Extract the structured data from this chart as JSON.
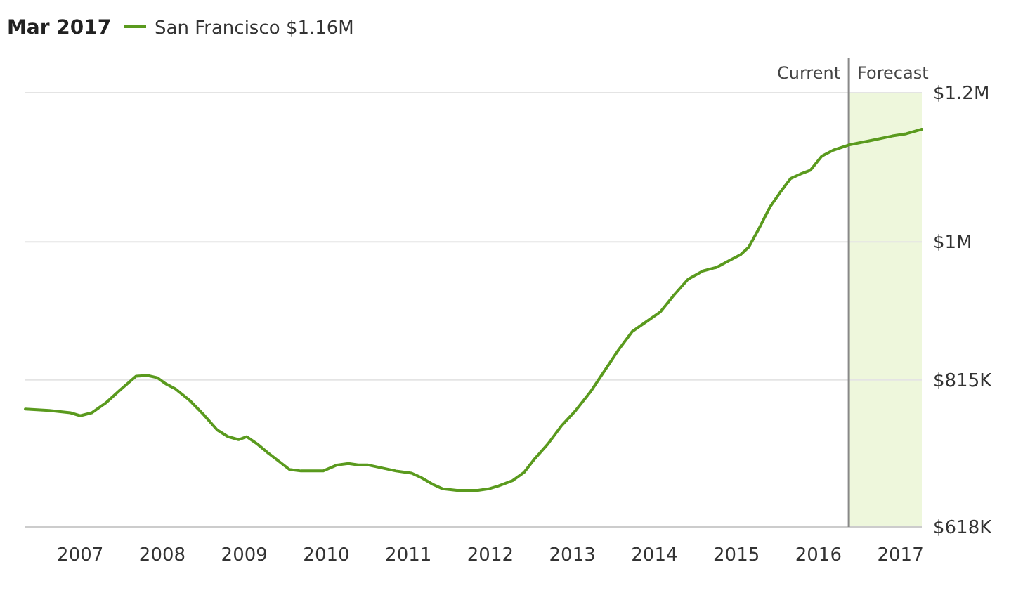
{
  "chart_data": {
    "type": "line",
    "title": "Mar 2017",
    "legend": "top left",
    "grid": "y",
    "marker": "none",
    "line_style": "solid",
    "x": [
      2006.33,
      2006.62,
      2006.88,
      2007,
      2007.14,
      2007.31,
      2007.48,
      2007.68,
      2007.82,
      2007.94,
      2008.04,
      2008.16,
      2008.33,
      2008.5,
      2008.67,
      2008.8,
      2008.93,
      2009.03,
      2009.16,
      2009.28,
      2009.41,
      2009.55,
      2009.69,
      2009.82,
      2009.96,
      2010.13,
      2010.27,
      2010.39,
      2010.51,
      2010.68,
      2010.85,
      2011.04,
      2011.16,
      2011.3,
      2011.42,
      2011.59,
      2011.85,
      2011.98,
      2012.1,
      2012.27,
      2012.41,
      2012.53,
      2012.7,
      2012.87,
      2013.04,
      2013.22,
      2013.39,
      2013.56,
      2013.73,
      2013.9,
      2014.07,
      2014.24,
      2014.41,
      2014.59,
      2014.76,
      2014.93,
      2015.05,
      2015.15,
      2015.27,
      2015.41,
      2015.53,
      2015.66,
      2015.78,
      2015.9,
      2016.04,
      2016.18,
      2016.37,
      2016.64,
      2016.9,
      2017.07,
      2017.26
    ],
    "series": [
      {
        "name": "San Francisco $1.16M",
        "color": "#5a9a1e",
        "values": [
          776000,
          774000,
          771000,
          767000,
          771000,
          784000,
          801000,
          820000,
          821000,
          818000,
          810000,
          803000,
          788000,
          769000,
          748000,
          739000,
          735000,
          739000,
          729000,
          718000,
          707000,
          695000,
          693000,
          693000,
          693000,
          701000,
          703000,
          701000,
          701000,
          697000,
          693000,
          690000,
          684000,
          675000,
          669000,
          667000,
          667000,
          669000,
          673000,
          680000,
          691000,
          708000,
          729000,
          754000,
          774000,
          799000,
          827000,
          855000,
          880000,
          893000,
          906000,
          929000,
          950000,
          961000,
          966000,
          976000,
          983000,
          993000,
          1017000,
          1047000,
          1066000,
          1085000,
          1091000,
          1096000,
          1115000,
          1123000,
          1130000,
          1136000,
          1142000,
          1145000,
          1151000
        ]
      }
    ],
    "xlim": [
      2006.33,
      2017.26
    ],
    "xticks": [
      2007,
      2008,
      2009,
      2010,
      2011,
      2012,
      2013,
      2014,
      2015,
      2016,
      2017
    ],
    "ylim": [
      618000,
      1200000
    ],
    "yticks": [
      {
        "value": 618000,
        "label": "$618K"
      },
      {
        "value": 815000,
        "label": "$815K"
      },
      {
        "value": 1000000,
        "label": "$1M"
      },
      {
        "value": 1200000,
        "label": "$1.2M"
      }
    ],
    "ref_lines": [
      {
        "axis": "x",
        "value": 2016.37,
        "label": "Current",
        "color": "#888888"
      }
    ],
    "bands": [
      {
        "axis": "x",
        "from": 2016.37,
        "to": 2017.26,
        "label": "Forecast",
        "color": "#eef7dc"
      }
    ]
  }
}
